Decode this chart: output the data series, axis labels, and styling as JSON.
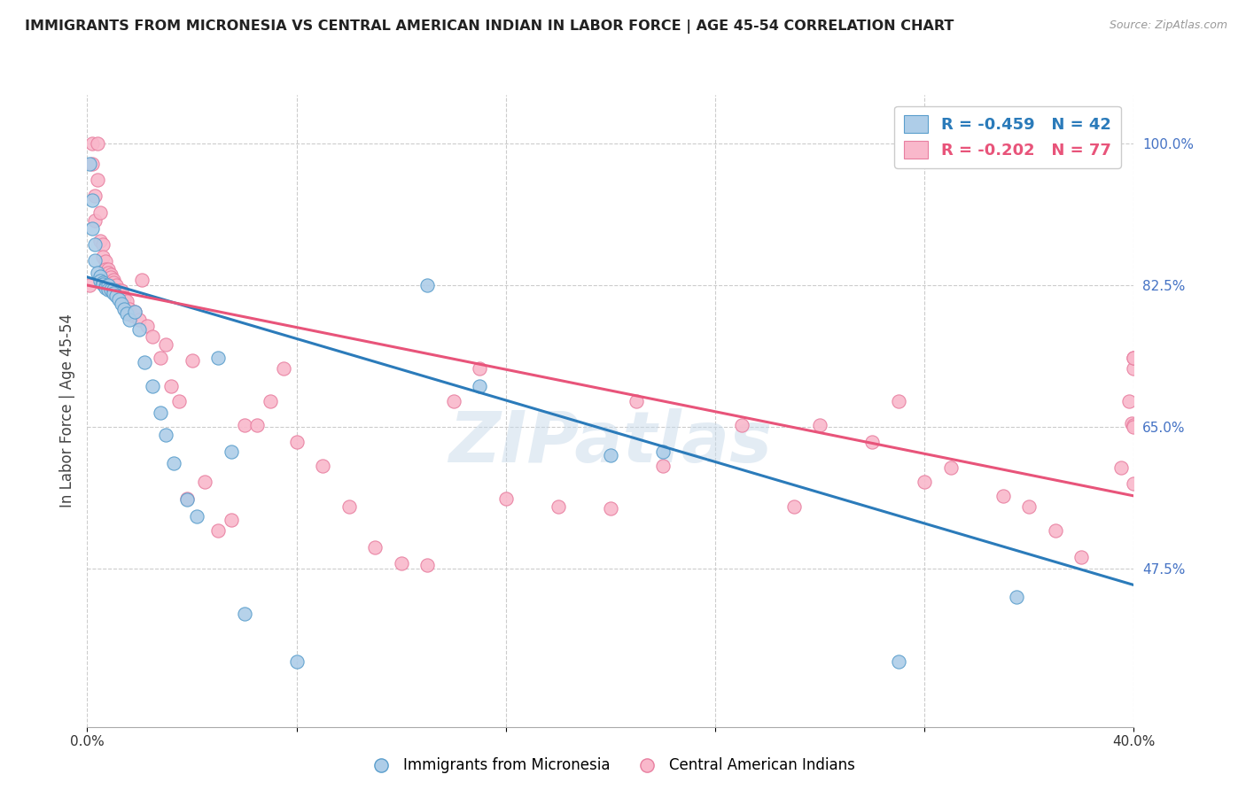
{
  "title": "IMMIGRANTS FROM MICRONESIA VS CENTRAL AMERICAN INDIAN IN LABOR FORCE | AGE 45-54 CORRELATION CHART",
  "source": "Source: ZipAtlas.com",
  "ylabel": "In Labor Force | Age 45-54",
  "xlim": [
    0.0,
    0.4
  ],
  "ylim": [
    0.28,
    1.06
  ],
  "blue_R": -0.459,
  "blue_N": 42,
  "pink_R": -0.202,
  "pink_N": 77,
  "blue_color": "#aecde8",
  "pink_color": "#f9b8cb",
  "blue_edge_color": "#5a9ecc",
  "pink_edge_color": "#e87fa0",
  "blue_line_color": "#2b7bba",
  "pink_line_color": "#e8547a",
  "legend_label_blue": "Immigrants from Micronesia",
  "legend_label_pink": "Central American Indians",
  "watermark": "ZIPatlas",
  "blue_line_x0": 0.0,
  "blue_line_y0": 0.835,
  "blue_line_x1": 0.4,
  "blue_line_y1": 0.455,
  "pink_line_x0": 0.0,
  "pink_line_y0": 0.825,
  "pink_line_x1": 0.4,
  "pink_line_y1": 0.565,
  "blue_scatter_x": [
    0.001,
    0.002,
    0.002,
    0.003,
    0.003,
    0.004,
    0.005,
    0.005,
    0.006,
    0.006,
    0.007,
    0.007,
    0.008,
    0.008,
    0.009,
    0.01,
    0.01,
    0.011,
    0.012,
    0.013,
    0.014,
    0.015,
    0.016,
    0.018,
    0.02,
    0.022,
    0.025,
    0.028,
    0.03,
    0.033,
    0.038,
    0.042,
    0.05,
    0.055,
    0.06,
    0.08,
    0.13,
    0.15,
    0.2,
    0.22,
    0.31,
    0.355
  ],
  "blue_scatter_y": [
    0.975,
    0.93,
    0.895,
    0.875,
    0.856,
    0.84,
    0.836,
    0.83,
    0.828,
    0.826,
    0.824,
    0.822,
    0.825,
    0.82,
    0.82,
    0.82,
    0.815,
    0.812,
    0.808,
    0.802,
    0.795,
    0.79,
    0.782,
    0.792,
    0.77,
    0.73,
    0.7,
    0.668,
    0.64,
    0.605,
    0.56,
    0.54,
    0.735,
    0.62,
    0.42,
    0.36,
    0.825,
    0.7,
    0.615,
    0.62,
    0.36,
    0.44
  ],
  "pink_scatter_x": [
    0.001,
    0.002,
    0.002,
    0.003,
    0.003,
    0.004,
    0.004,
    0.005,
    0.005,
    0.006,
    0.006,
    0.007,
    0.007,
    0.008,
    0.008,
    0.009,
    0.009,
    0.01,
    0.01,
    0.011,
    0.012,
    0.013,
    0.014,
    0.015,
    0.016,
    0.017,
    0.018,
    0.02,
    0.021,
    0.023,
    0.025,
    0.028,
    0.03,
    0.032,
    0.035,
    0.038,
    0.04,
    0.045,
    0.05,
    0.055,
    0.06,
    0.065,
    0.07,
    0.075,
    0.08,
    0.09,
    0.1,
    0.11,
    0.12,
    0.13,
    0.14,
    0.15,
    0.16,
    0.18,
    0.2,
    0.21,
    0.22,
    0.25,
    0.27,
    0.28,
    0.3,
    0.31,
    0.32,
    0.33,
    0.35,
    0.36,
    0.37,
    0.38,
    0.395,
    0.398,
    0.399,
    0.4,
    0.4,
    0.4,
    0.4,
    0.4,
    0.4
  ],
  "pink_scatter_y": [
    0.825,
    1.0,
    0.975,
    0.935,
    0.905,
    1.0,
    0.955,
    0.915,
    0.88,
    0.875,
    0.86,
    0.855,
    0.845,
    0.845,
    0.84,
    0.838,
    0.835,
    0.832,
    0.828,
    0.825,
    0.818,
    0.818,
    0.81,
    0.805,
    0.795,
    0.788,
    0.792,
    0.782,
    0.832,
    0.775,
    0.762,
    0.735,
    0.752,
    0.7,
    0.682,
    0.562,
    0.732,
    0.582,
    0.522,
    0.535,
    0.652,
    0.652,
    0.682,
    0.722,
    0.632,
    0.602,
    0.552,
    0.502,
    0.482,
    0.48,
    0.682,
    0.722,
    0.562,
    0.552,
    0.55,
    0.682,
    0.602,
    0.652,
    0.552,
    0.652,
    0.632,
    0.682,
    0.582,
    0.6,
    0.565,
    0.552,
    0.522,
    0.49,
    0.6,
    0.682,
    0.655,
    0.722,
    0.652,
    0.58,
    0.735,
    0.65,
    0.735
  ]
}
